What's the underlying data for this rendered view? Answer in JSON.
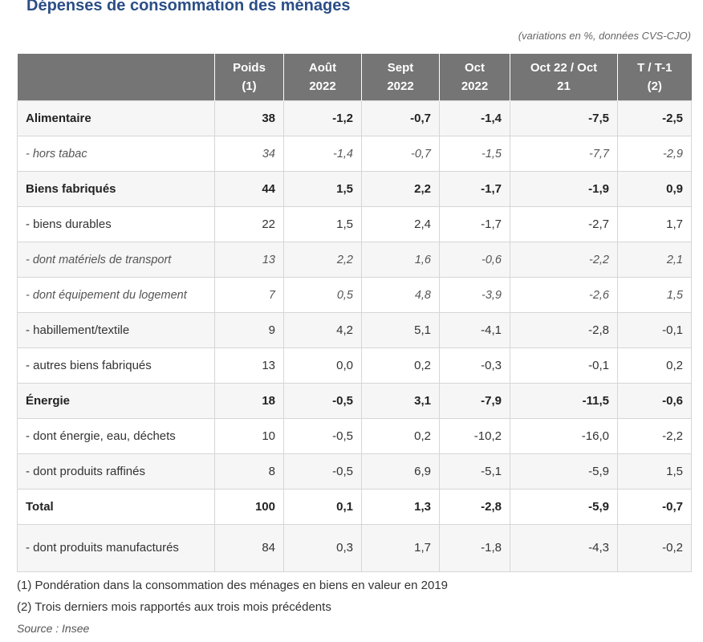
{
  "title": "Dépenses de consommation des ménages",
  "subtitle": "(variations en %, données CVS-CJO)",
  "headers": [
    {
      "line1": "",
      "line2": ""
    },
    {
      "line1": "Poids",
      "line2": "(1)"
    },
    {
      "line1": "Août",
      "line2": "2022"
    },
    {
      "line1": "Sept",
      "line2": "2022"
    },
    {
      "line1": "Oct",
      "line2": "2022"
    },
    {
      "line1": "Oct 22 / Oct",
      "line2": "21"
    },
    {
      "line1": "T / T-1",
      "line2": "(2)"
    }
  ],
  "rows": [
    {
      "label": "Alimentaire",
      "style": "bold",
      "cells": [
        "38",
        "-1,2",
        "-0,7",
        "-1,4",
        "-7,5",
        "-2,5"
      ]
    },
    {
      "label": "- hors tabac",
      "style": "ital",
      "cells": [
        "34",
        "-1,4",
        "-0,7",
        "-1,5",
        "-7,7",
        "-2,9"
      ]
    },
    {
      "label": "Biens fabriqués",
      "style": "bold",
      "cells": [
        "44",
        "1,5",
        "2,2",
        "-1,7",
        "-1,9",
        "0,9"
      ]
    },
    {
      "label": "- biens durables",
      "style": "normal",
      "cells": [
        "22",
        "1,5",
        "2,4",
        "-1,7",
        "-2,7",
        "1,7"
      ]
    },
    {
      "label": "- dont matériels de transport",
      "style": "ital",
      "cells": [
        "13",
        "2,2",
        "1,6",
        "-0,6",
        "-2,2",
        "2,1"
      ]
    },
    {
      "label": "- dont équipement du logement",
      "style": "ital",
      "cells": [
        "7",
        "0,5",
        "4,8",
        "-3,9",
        "-2,6",
        "1,5"
      ]
    },
    {
      "label": "- habillement/textile",
      "style": "normal",
      "cells": [
        "9",
        "4,2",
        "5,1",
        "-4,1",
        "-2,8",
        "-0,1"
      ]
    },
    {
      "label": "- autres biens fabriqués",
      "style": "normal",
      "cells": [
        "13",
        "0,0",
        "0,2",
        "-0,3",
        "-0,1",
        "0,2"
      ]
    },
    {
      "label": "Énergie",
      "style": "bold",
      "cells": [
        "18",
        "-0,5",
        "3,1",
        "-7,9",
        "-11,5",
        "-0,6"
      ]
    },
    {
      "label": "- dont énergie, eau, déchets",
      "style": "normal",
      "cells": [
        "10",
        "-0,5",
        "0,2",
        "-10,2",
        "-16,0",
        "-2,2"
      ]
    },
    {
      "label": "- dont produits raffinés",
      "style": "normal",
      "cells": [
        "8",
        "-0,5",
        "6,9",
        "-5,1",
        "-5,9",
        "1,5"
      ]
    },
    {
      "label": "Total",
      "style": "bold",
      "cells": [
        "100",
        "0,1",
        "1,3",
        "-2,8",
        "-5,9",
        "-0,7"
      ]
    },
    {
      "label": "- dont produits manufacturés",
      "style": "normal",
      "cells": [
        "84",
        "0,3",
        "1,7",
        "-1,8",
        "-4,3",
        "-0,2"
      ]
    }
  ],
  "notes": [
    "(1) Pondération dans la consommation des ménages en biens en valeur en 2019",
    "(2) Trois derniers mois rapportés aux trois mois précédents"
  ],
  "source": "Source : Insee"
}
